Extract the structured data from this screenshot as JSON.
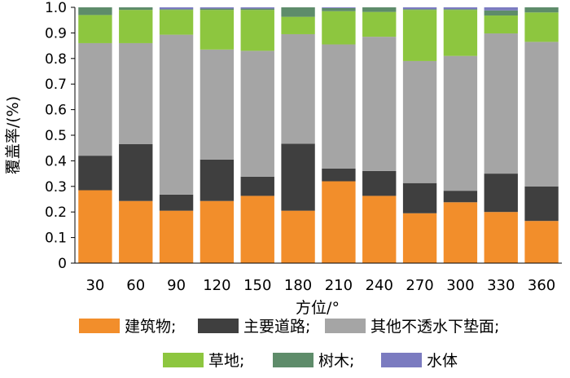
{
  "chart_data": {
    "type": "bar",
    "stacked": true,
    "categories": [
      "30",
      "60",
      "90",
      "120",
      "150",
      "180",
      "210",
      "240",
      "270",
      "300",
      "330",
      "360"
    ],
    "xlabel": "方位/°",
    "ylabel": "覆盖率/(%)",
    "ylim": [
      0,
      1.0
    ],
    "yticks": [
      "0",
      "0.1",
      "0.2",
      "0.3",
      "0.4",
      "0.5",
      "0.6",
      "0.7",
      "0.8",
      "0.9",
      "1.0"
    ],
    "grid": false,
    "legend_position": "bottom",
    "series": [
      {
        "name": "建筑物;",
        "color": "#F28E2B",
        "values": [
          0.285,
          0.243,
          0.205,
          0.243,
          0.263,
          0.205,
          0.32,
          0.263,
          0.195,
          0.238,
          0.2,
          0.165
        ]
      },
      {
        "name": "主要道路;",
        "color": "#3F3F3F",
        "values": [
          0.135,
          0.222,
          0.063,
          0.162,
          0.075,
          0.262,
          0.05,
          0.097,
          0.118,
          0.045,
          0.15,
          0.135
        ]
      },
      {
        "name": "其他不透水下垫面;",
        "color": "#A5A5A5",
        "values": [
          0.44,
          0.395,
          0.625,
          0.43,
          0.492,
          0.428,
          0.485,
          0.525,
          0.477,
          0.527,
          0.548,
          0.565
        ]
      },
      {
        "name": "草地;",
        "color": "#8DC63F",
        "values": [
          0.11,
          0.13,
          0.097,
          0.155,
          0.16,
          0.068,
          0.13,
          0.097,
          0.2,
          0.18,
          0.07,
          0.115
        ]
      },
      {
        "name": "树木;",
        "color": "#5E8C6A",
        "values": [
          0.03,
          0.01,
          0.003,
          0.005,
          0.005,
          0.037,
          0.012,
          0.018,
          0.003,
          0.003,
          0.02,
          0.02
        ]
      },
      {
        "name": "水体",
        "color": "#7B7BC0",
        "values": [
          0.0,
          0.0,
          0.007,
          0.005,
          0.005,
          0.0,
          0.003,
          0.0,
          0.007,
          0.007,
          0.012,
          0.0
        ]
      }
    ]
  }
}
